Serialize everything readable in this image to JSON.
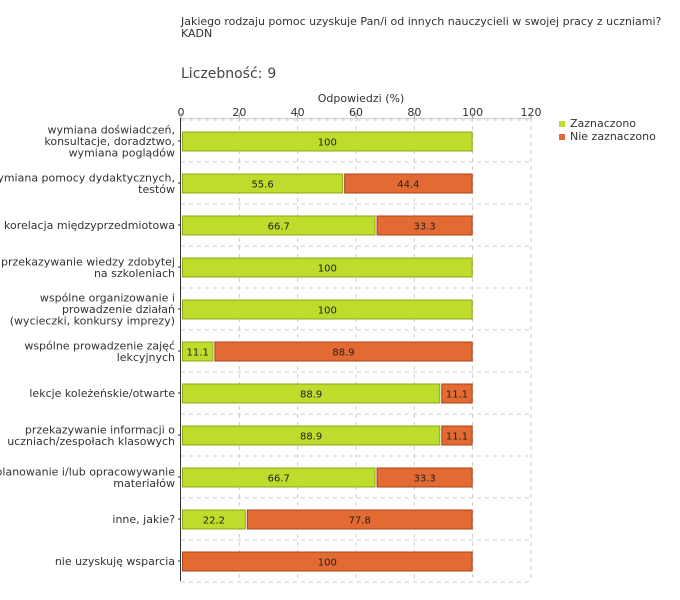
{
  "question": {
    "lines": [
      "Jakiego rodzaju pomoc uzyskuje Pan/i od innych nauczycieli w swojej pracy z uczniami?",
      "KADN"
    ]
  },
  "count": {
    "label": "Liczebność:",
    "value": "9"
  },
  "colors": {
    "selected": "#bddc2b",
    "selected_border": "#8aa81a",
    "not_selected": "#e36a32",
    "not_selected_border": "#a84217",
    "grid": "#cccccc",
    "axis": "#333333"
  },
  "chart_data": {
    "type": "bar",
    "orientation": "horizontal",
    "stacked": true,
    "title": "Jakiego rodzaju pomoc uzyskuje Pan/i od innych nauczycieli w swojej pracy z uczniami? KADN",
    "xlabel": "Odpowiedzi (%)",
    "ylabel": "",
    "xlim": [
      0,
      120
    ],
    "xticks": [
      "0",
      "20",
      "40",
      "60",
      "80",
      "100",
      "120"
    ],
    "grid": true,
    "legend_position": "top-right",
    "categories": [
      [
        "wymiana doświadczeń,",
        "konsultacje, doradztwo,",
        "wymiana poglądów"
      ],
      [
        "wymiana pomocy dydaktycznych,",
        "testów"
      ],
      [
        "korelacja międzyprzedmiotowa"
      ],
      [
        "przekazywanie wiedzy zdobytej",
        "na szkoleniach"
      ],
      [
        "wspólne organizowanie i",
        "prowadzenie działań",
        "(wycieczki, konkursy imprezy)"
      ],
      [
        "wspólne prowadzenie zajęć",
        "lekcyjnych"
      ],
      [
        "lekcje koleżeńskie/otwarte"
      ],
      [
        "przekazywanie informacji o",
        "uczniach/zespołach klasowych"
      ],
      [
        "planowanie i/lub opracowywanie",
        "materiałów"
      ],
      [
        "inne, jakie?"
      ],
      [
        "nie uzyskuję wsparcia"
      ]
    ],
    "series": [
      {
        "name": "Zaznaczono",
        "values": [
          100,
          55.6,
          66.7,
          100,
          100,
          11.1,
          88.9,
          88.9,
          66.7,
          22.2,
          0
        ]
      },
      {
        "name": "Nie zaznaczono",
        "values": [
          0,
          44.4,
          33.3,
          0,
          0,
          88.9,
          11.1,
          11.1,
          33.3,
          77.8,
          100
        ]
      }
    ]
  }
}
